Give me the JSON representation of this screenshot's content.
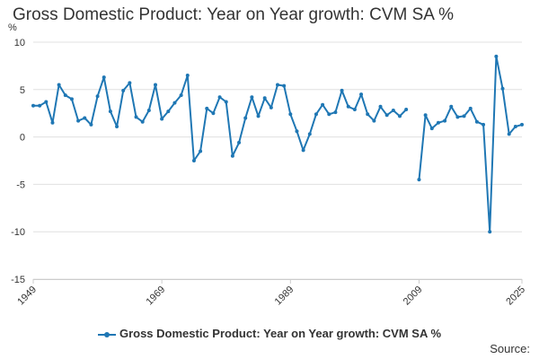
{
  "chart_data": {
    "type": "line",
    "title": "Gross Domestic Product: Year on Year growth: CVM SA %",
    "ylabel": "%",
    "xlabel": "",
    "ylim": [
      -15,
      10
    ],
    "yticks": [
      10,
      5,
      0,
      -5,
      -10,
      -15
    ],
    "xlim": [
      1949,
      2025
    ],
    "xticks": [
      1949,
      1969,
      1989,
      2009,
      2025
    ],
    "grid": true,
    "legend_position": "bottom",
    "color": "#1f77b4",
    "series": [
      {
        "name": "Gross Domestic Product: Year on Year growth: CVM SA %",
        "segments": [
          {
            "x": [
              1949,
              1950,
              1951,
              1952,
              1953,
              1954,
              1955,
              1956,
              1957,
              1958,
              1959,
              1960,
              1961,
              1962,
              1963,
              1964,
              1965,
              1966,
              1967,
              1968,
              1969,
              1970,
              1971,
              1972,
              1973,
              1974,
              1975,
              1976,
              1977,
              1978,
              1979,
              1980,
              1981,
              1982,
              1983,
              1984,
              1985,
              1986,
              1987,
              1988,
              1989,
              1990,
              1991,
              1992,
              1993,
              1994,
              1995,
              1996,
              1997,
              1998,
              1999,
              2000,
              2001,
              2002,
              2003,
              2004,
              2005,
              2006,
              2007
            ],
            "y": [
              3.3,
              3.3,
              3.7,
              1.5,
              5.5,
              4.4,
              4.0,
              1.7,
              2.0,
              1.3,
              4.3,
              6.3,
              2.7,
              1.1,
              4.9,
              5.7,
              2.1,
              1.6,
              2.8,
              5.5,
              1.9,
              2.7,
              3.6,
              4.4,
              6.5,
              -2.5,
              -1.5,
              3.0,
              2.5,
              4.2,
              3.7,
              -2.0,
              -0.6,
              2.0,
              4.2,
              2.2,
              4.1,
              3.1,
              5.5,
              5.4,
              2.4,
              0.6,
              -1.4,
              0.3,
              2.4,
              3.4,
              2.4,
              2.6,
              4.9,
              3.2,
              2.9,
              4.5,
              2.4,
              1.7,
              3.2,
              2.3,
              2.8,
              2.2,
              2.9
            ]
          },
          {
            "x": [
              2009,
              2010,
              2011,
              2012,
              2013,
              2014,
              2015,
              2016,
              2017,
              2018,
              2019,
              2020,
              2021,
              2022,
              2023,
              2024,
              2025
            ],
            "y": [
              -4.5,
              2.3,
              0.9,
              1.5,
              1.7,
              3.2,
              2.1,
              2.2,
              3.0,
              1.6,
              1.3,
              -10.0,
              8.5,
              5.1,
              0.3,
              1.1,
              1.3
            ]
          }
        ]
      }
    ],
    "legend": "Gross Domestic Product: Year on Year growth: CVM SA %",
    "source_label": "Source:"
  }
}
